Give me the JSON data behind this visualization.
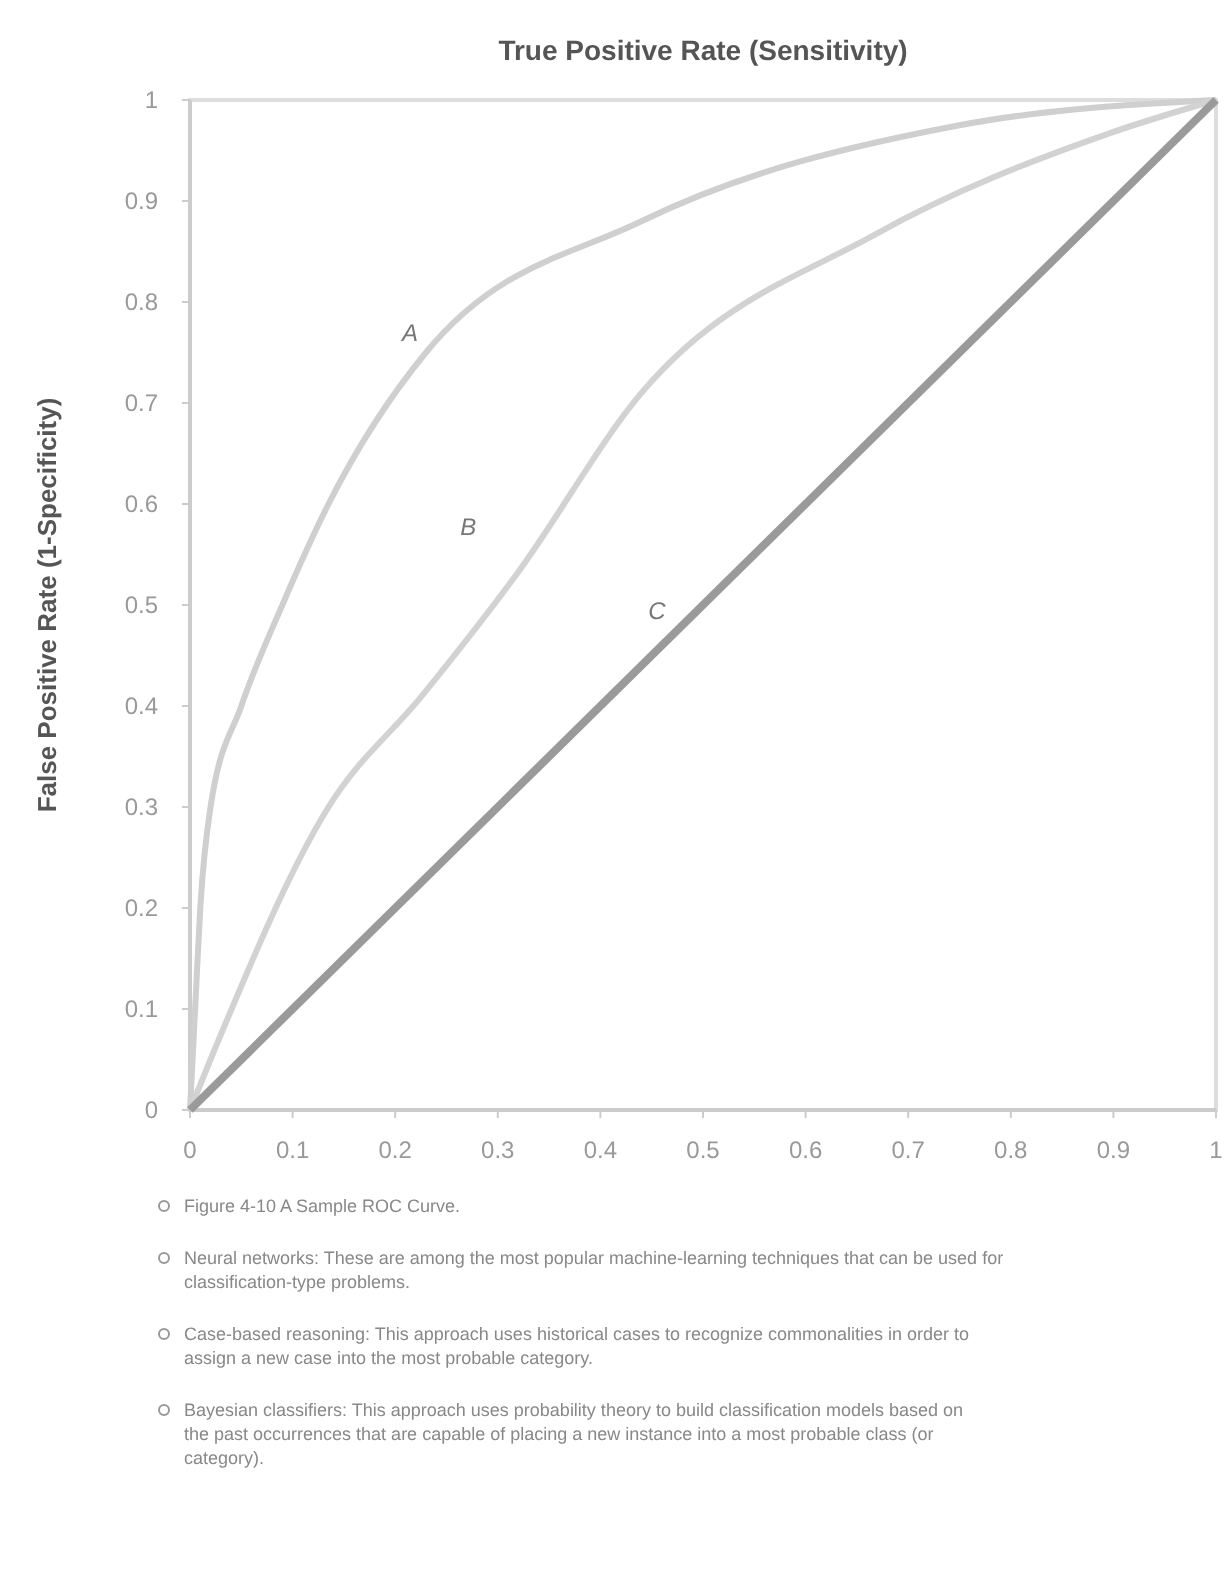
{
  "chart_data": {
    "type": "line",
    "title": "True Positive Rate (Sensitivity)",
    "ylabel": "False Positive Rate (1-Specificity)",
    "series": [
      {
        "name": "A",
        "color": "#cfcfcf",
        "x": [
          0,
          0.005,
          0.01,
          0.02,
          0.05,
          0.09,
          0.135,
          0.23,
          0.44,
          0.75,
          1
        ],
        "values": [
          0,
          0.1,
          0.2,
          0.3,
          0.4,
          0.5,
          0.6,
          0.75,
          0.88,
          0.975,
          1
        ]
      },
      {
        "name": "B",
        "color": "#d2d2d2",
        "x": [
          0,
          0.02,
          0.135,
          0.226,
          0.318,
          0.44,
          0.668,
          0.896,
          1
        ],
        "values": [
          0,
          0.05,
          0.3,
          0.41,
          0.53,
          0.71,
          0.867,
          0.967,
          1
        ]
      },
      {
        "name": "C",
        "color": "#9a9a9a",
        "x": [
          0,
          1
        ],
        "values": [
          0,
          1
        ]
      }
    ],
    "xlim": [
      0,
      1
    ],
    "ylim": [
      0,
      1
    ],
    "xticks": [
      0,
      0.1,
      0.2,
      0.3,
      0.4,
      0.5,
      0.6,
      0.7,
      0.8,
      0.9,
      1
    ],
    "yticks": [
      0,
      0.1,
      0.2,
      0.3,
      0.4,
      0.5,
      0.6,
      0.7,
      0.8,
      0.9,
      1
    ],
    "grid": false,
    "legend": false,
    "marker": "none",
    "line_style": "solid",
    "annotations": [
      "Figure 4-10 A Sample ROC Curve.",
      "Neural networks: These are among the most popular machine-learning techniques that can be used for classification-type problems.",
      "Case-based reasoning: This approach uses historical cases to recognize commonalities in order to assign a new case into the most probable category.",
      "Bayesian classifiers: This approach uses probability theory to build classification models based on the past occurrences that are capable of placing a new instance into a most probable class (or category)."
    ]
  }
}
